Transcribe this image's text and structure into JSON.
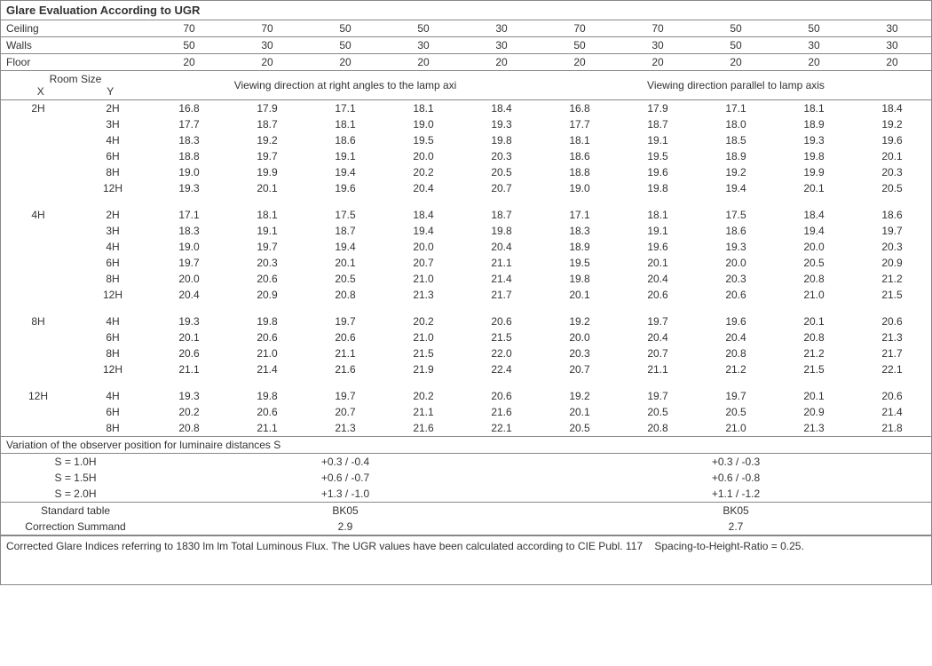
{
  "title": "Glare Evaluation According to UGR",
  "reflectances": {
    "labels": {
      "ceiling": "Ceiling",
      "walls": "Walls",
      "floor": "Floor"
    },
    "ceiling": [
      "70",
      "70",
      "50",
      "50",
      "30",
      "70",
      "70",
      "50",
      "50",
      "30"
    ],
    "walls": [
      "50",
      "30",
      "50",
      "30",
      "30",
      "50",
      "30",
      "50",
      "30",
      "30"
    ],
    "floor": [
      "20",
      "20",
      "20",
      "20",
      "20",
      "20",
      "20",
      "20",
      "20",
      "20"
    ]
  },
  "room_size_header": "Room Size",
  "x_label": "X",
  "y_label": "Y",
  "direction_headers": {
    "right": "Viewing direction at right angles to the lamp axi",
    "parallel": "Viewing direction parallel to lamp axis"
  },
  "groups": [
    {
      "x": "2H",
      "rows": [
        {
          "y": "2H",
          "v": [
            "16.8",
            "17.9",
            "17.1",
            "18.1",
            "18.4",
            "16.8",
            "17.9",
            "17.1",
            "18.1",
            "18.4"
          ]
        },
        {
          "y": "3H",
          "v": [
            "17.7",
            "18.7",
            "18.1",
            "19.0",
            "19.3",
            "17.7",
            "18.7",
            "18.0",
            "18.9",
            "19.2"
          ]
        },
        {
          "y": "4H",
          "v": [
            "18.3",
            "19.2",
            "18.6",
            "19.5",
            "19.8",
            "18.1",
            "19.1",
            "18.5",
            "19.3",
            "19.6"
          ]
        },
        {
          "y": "6H",
          "v": [
            "18.8",
            "19.7",
            "19.1",
            "20.0",
            "20.3",
            "18.6",
            "19.5",
            "18.9",
            "19.8",
            "20.1"
          ]
        },
        {
          "y": "8H",
          "v": [
            "19.0",
            "19.9",
            "19.4",
            "20.2",
            "20.5",
            "18.8",
            "19.6",
            "19.2",
            "19.9",
            "20.3"
          ]
        },
        {
          "y": "12H",
          "v": [
            "19.3",
            "20.1",
            "19.6",
            "20.4",
            "20.7",
            "19.0",
            "19.8",
            "19.4",
            "20.1",
            "20.5"
          ]
        }
      ]
    },
    {
      "x": "4H",
      "rows": [
        {
          "y": "2H",
          "v": [
            "17.1",
            "18.1",
            "17.5",
            "18.4",
            "18.7",
            "17.1",
            "18.1",
            "17.5",
            "18.4",
            "18.6"
          ]
        },
        {
          "y": "3H",
          "v": [
            "18.3",
            "19.1",
            "18.7",
            "19.4",
            "19.8",
            "18.3",
            "19.1",
            "18.6",
            "19.4",
            "19.7"
          ]
        },
        {
          "y": "4H",
          "v": [
            "19.0",
            "19.7",
            "19.4",
            "20.0",
            "20.4",
            "18.9",
            "19.6",
            "19.3",
            "20.0",
            "20.3"
          ]
        },
        {
          "y": "6H",
          "v": [
            "19.7",
            "20.3",
            "20.1",
            "20.7",
            "21.1",
            "19.5",
            "20.1",
            "20.0",
            "20.5",
            "20.9"
          ]
        },
        {
          "y": "8H",
          "v": [
            "20.0",
            "20.6",
            "20.5",
            "21.0",
            "21.4",
            "19.8",
            "20.4",
            "20.3",
            "20.8",
            "21.2"
          ]
        },
        {
          "y": "12H",
          "v": [
            "20.4",
            "20.9",
            "20.8",
            "21.3",
            "21.7",
            "20.1",
            "20.6",
            "20.6",
            "21.0",
            "21.5"
          ]
        }
      ]
    },
    {
      "x": "8H",
      "rows": [
        {
          "y": "4H",
          "v": [
            "19.3",
            "19.8",
            "19.7",
            "20.2",
            "20.6",
            "19.2",
            "19.7",
            "19.6",
            "20.1",
            "20.6"
          ]
        },
        {
          "y": "6H",
          "v": [
            "20.1",
            "20.6",
            "20.6",
            "21.0",
            "21.5",
            "20.0",
            "20.4",
            "20.4",
            "20.8",
            "21.3"
          ]
        },
        {
          "y": "8H",
          "v": [
            "20.6",
            "21.0",
            "21.1",
            "21.5",
            "22.0",
            "20.3",
            "20.7",
            "20.8",
            "21.2",
            "21.7"
          ]
        },
        {
          "y": "12H",
          "v": [
            "21.1",
            "21.4",
            "21.6",
            "21.9",
            "22.4",
            "20.7",
            "21.1",
            "21.2",
            "21.5",
            "22.1"
          ]
        }
      ]
    },
    {
      "x": "12H",
      "rows": [
        {
          "y": "4H",
          "v": [
            "19.3",
            "19.8",
            "19.7",
            "20.2",
            "20.6",
            "19.2",
            "19.7",
            "19.7",
            "20.1",
            "20.6"
          ]
        },
        {
          "y": "6H",
          "v": [
            "20.2",
            "20.6",
            "20.7",
            "21.1",
            "21.6",
            "20.1",
            "20.5",
            "20.5",
            "20.9",
            "21.4"
          ]
        },
        {
          "y": "8H",
          "v": [
            "20.8",
            "21.1",
            "21.3",
            "21.6",
            "22.1",
            "20.5",
            "20.8",
            "21.0",
            "21.3",
            "21.8"
          ]
        }
      ]
    }
  ],
  "variation_title": "Variation of the observer position for luminaire distances S",
  "variation_rows": [
    {
      "label": "S = 1.0H",
      "right": "+0.3 / -0.4",
      "parallel": "+0.3 / -0.3"
    },
    {
      "label": "S = 1.5H",
      "right": "+0.6 / -0.7",
      "parallel": "+0.6 / -0.8"
    },
    {
      "label": "S = 2.0H",
      "right": "+1.3 / -1.0",
      "parallel": "+1.1 / -1.2"
    }
  ],
  "standard_table_label": "Standard table",
  "correction_label": "Correction Summand",
  "standard_table_value_right": "BK05",
  "standard_table_value_parallel": "BK05",
  "correction_value_right": "2.9",
  "correction_value_parallel": "2.7",
  "footnote": "Corrected Glare Indices referring to 1830 lm lm Total Luminous Flux. The UGR values have been calculated according to CIE Publ. 117    Spacing-to-Height-Ratio = 0.25."
}
